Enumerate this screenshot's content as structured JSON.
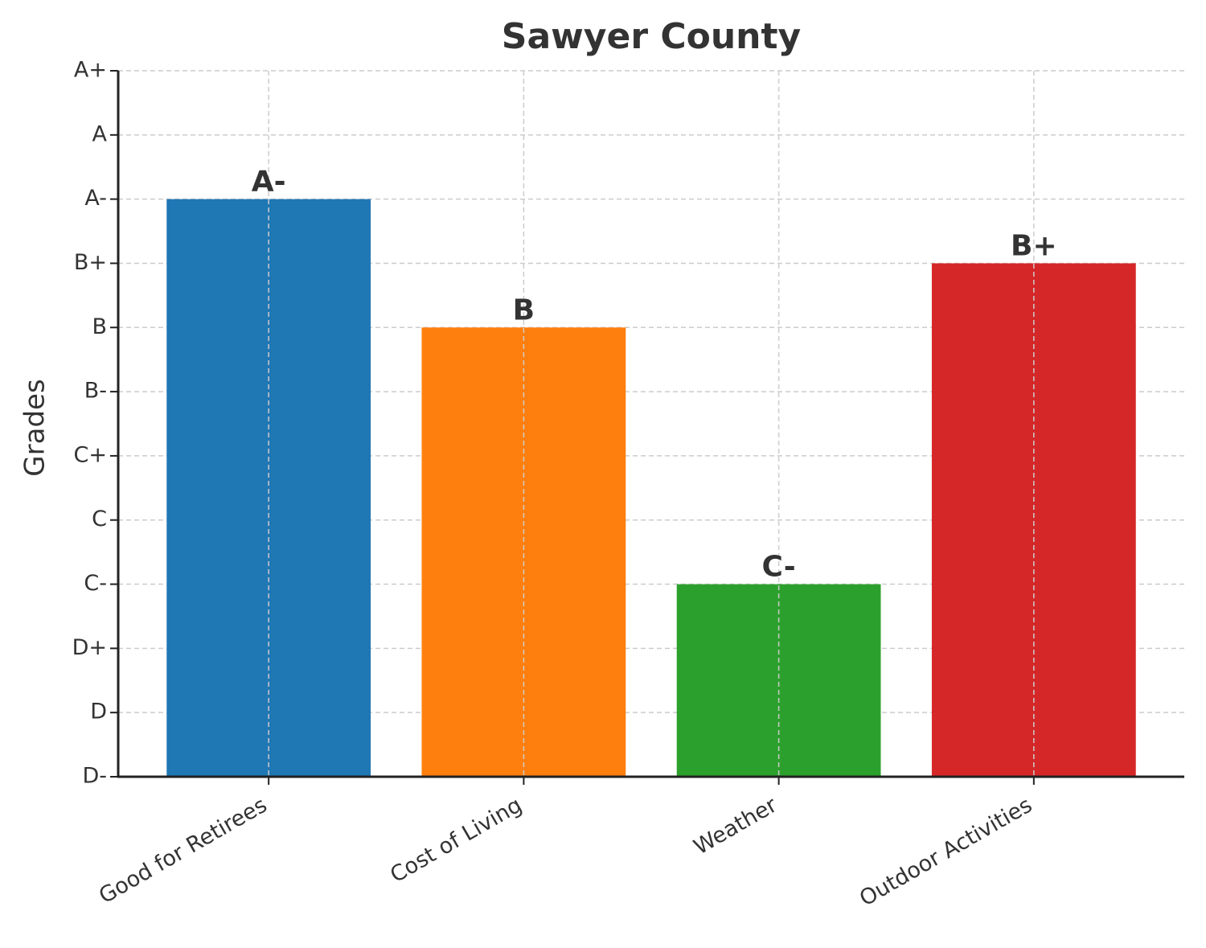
{
  "chart_data": {
    "type": "bar",
    "title": "Sawyer County",
    "y_label": "Grades",
    "categories": [
      "Good for Retirees",
      "Cost of Living",
      "Weather",
      "Outdoor Activities"
    ],
    "values": [
      9,
      7,
      3,
      8
    ],
    "value_labels": [
      "A-",
      "B",
      "C-",
      "B+"
    ],
    "colors": [
      "#1f77b4",
      "#ff7f0e",
      "#2ca02c",
      "#d62728"
    ],
    "ylim": [
      0,
      11
    ],
    "yticks": [
      {
        "value": 0,
        "label": "D-"
      },
      {
        "value": 1,
        "label": "D"
      },
      {
        "value": 2,
        "label": "D+"
      },
      {
        "value": 3,
        "label": "C-"
      },
      {
        "value": 4,
        "label": "C"
      },
      {
        "value": 5,
        "label": "C+"
      },
      {
        "value": 6,
        "label": "B-"
      },
      {
        "value": 7,
        "label": "B"
      },
      {
        "value": 8,
        "label": "B+"
      },
      {
        "value": 9,
        "label": "A-"
      },
      {
        "value": 10,
        "label": "A"
      },
      {
        "value": 11,
        "label": "A+"
      }
    ],
    "grid": true
  }
}
